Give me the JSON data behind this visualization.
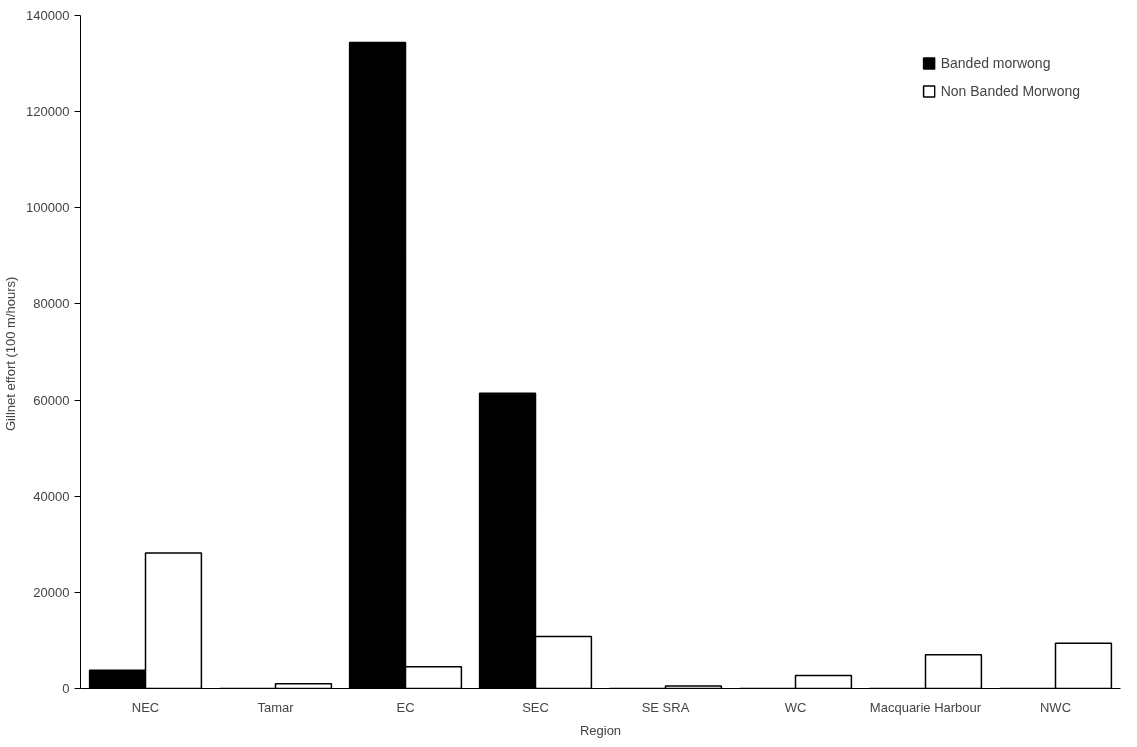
{
  "chart_data": {
    "type": "bar",
    "xlabel": "Region",
    "ylabel": "Gillnet effort  (100 m/hours)",
    "categories": [
      "NEC",
      "Tamar",
      "EC",
      "SEC",
      "SE SRA",
      "WC",
      "Macquarie Harbour",
      "NWC"
    ],
    "series": [
      {
        "name": "Banded morwong",
        "color": "#000000",
        "values": [
          3800,
          0,
          134400,
          61400,
          0,
          0,
          0,
          0
        ]
      },
      {
        "name": "Non Banded Morwong",
        "color": "#ffffff",
        "values": [
          28200,
          1000,
          4500,
          10800,
          500,
          2700,
          7000,
          9400
        ]
      }
    ],
    "ylim": [
      0,
      140000
    ],
    "yticks": [
      0,
      20000,
      40000,
      60000,
      80000,
      100000,
      120000,
      140000
    ],
    "grid": false,
    "legend": "top right"
  }
}
